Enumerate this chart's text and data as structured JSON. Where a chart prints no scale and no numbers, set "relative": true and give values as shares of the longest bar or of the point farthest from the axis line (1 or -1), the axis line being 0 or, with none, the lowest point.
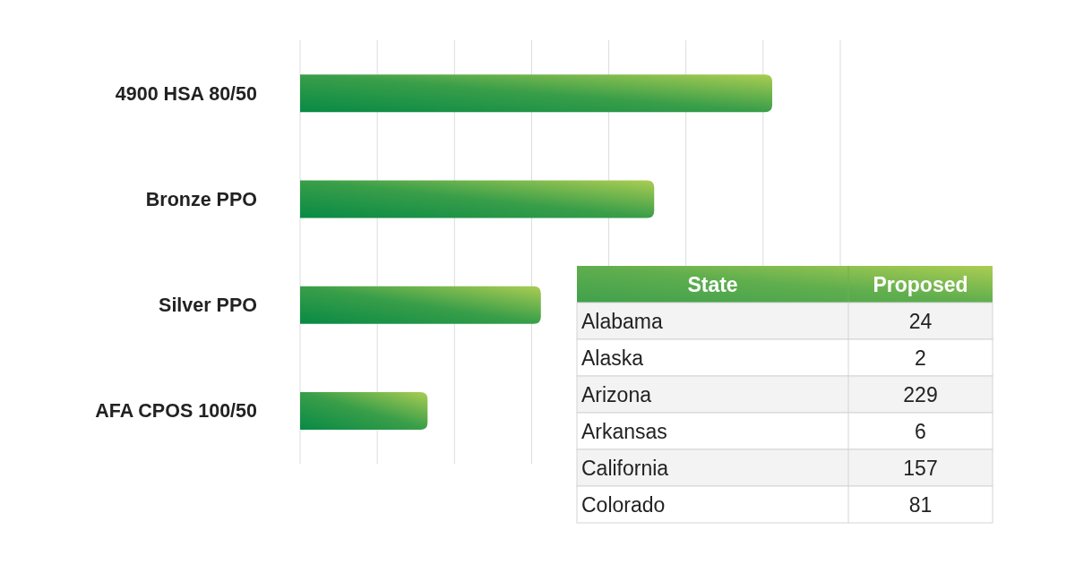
{
  "chart_data": [
    {
      "type": "bar",
      "orientation": "horizontal",
      "relative": true,
      "categories": [
        "4900 HSA 80/50",
        "Bronze PPO",
        "Silver PPO",
        "AFA CPOS 100/50"
      ],
      "values": [
        1,
        0.75,
        0.51,
        0.27
      ],
      "color": "#088a45",
      "grid": "x",
      "tick_labels": "y"
    },
    {
      "type": "other",
      "xlabel": "State",
      "ylabel": "Proposed",
      "categories": [
        "Alabama",
        "Alaska",
        "Arizona",
        "Arkansas",
        "California",
        "Colorado"
      ],
      "values": [
        24,
        2,
        229,
        6,
        157,
        81
      ],
      "data_labels": true
    }
  ]
}
